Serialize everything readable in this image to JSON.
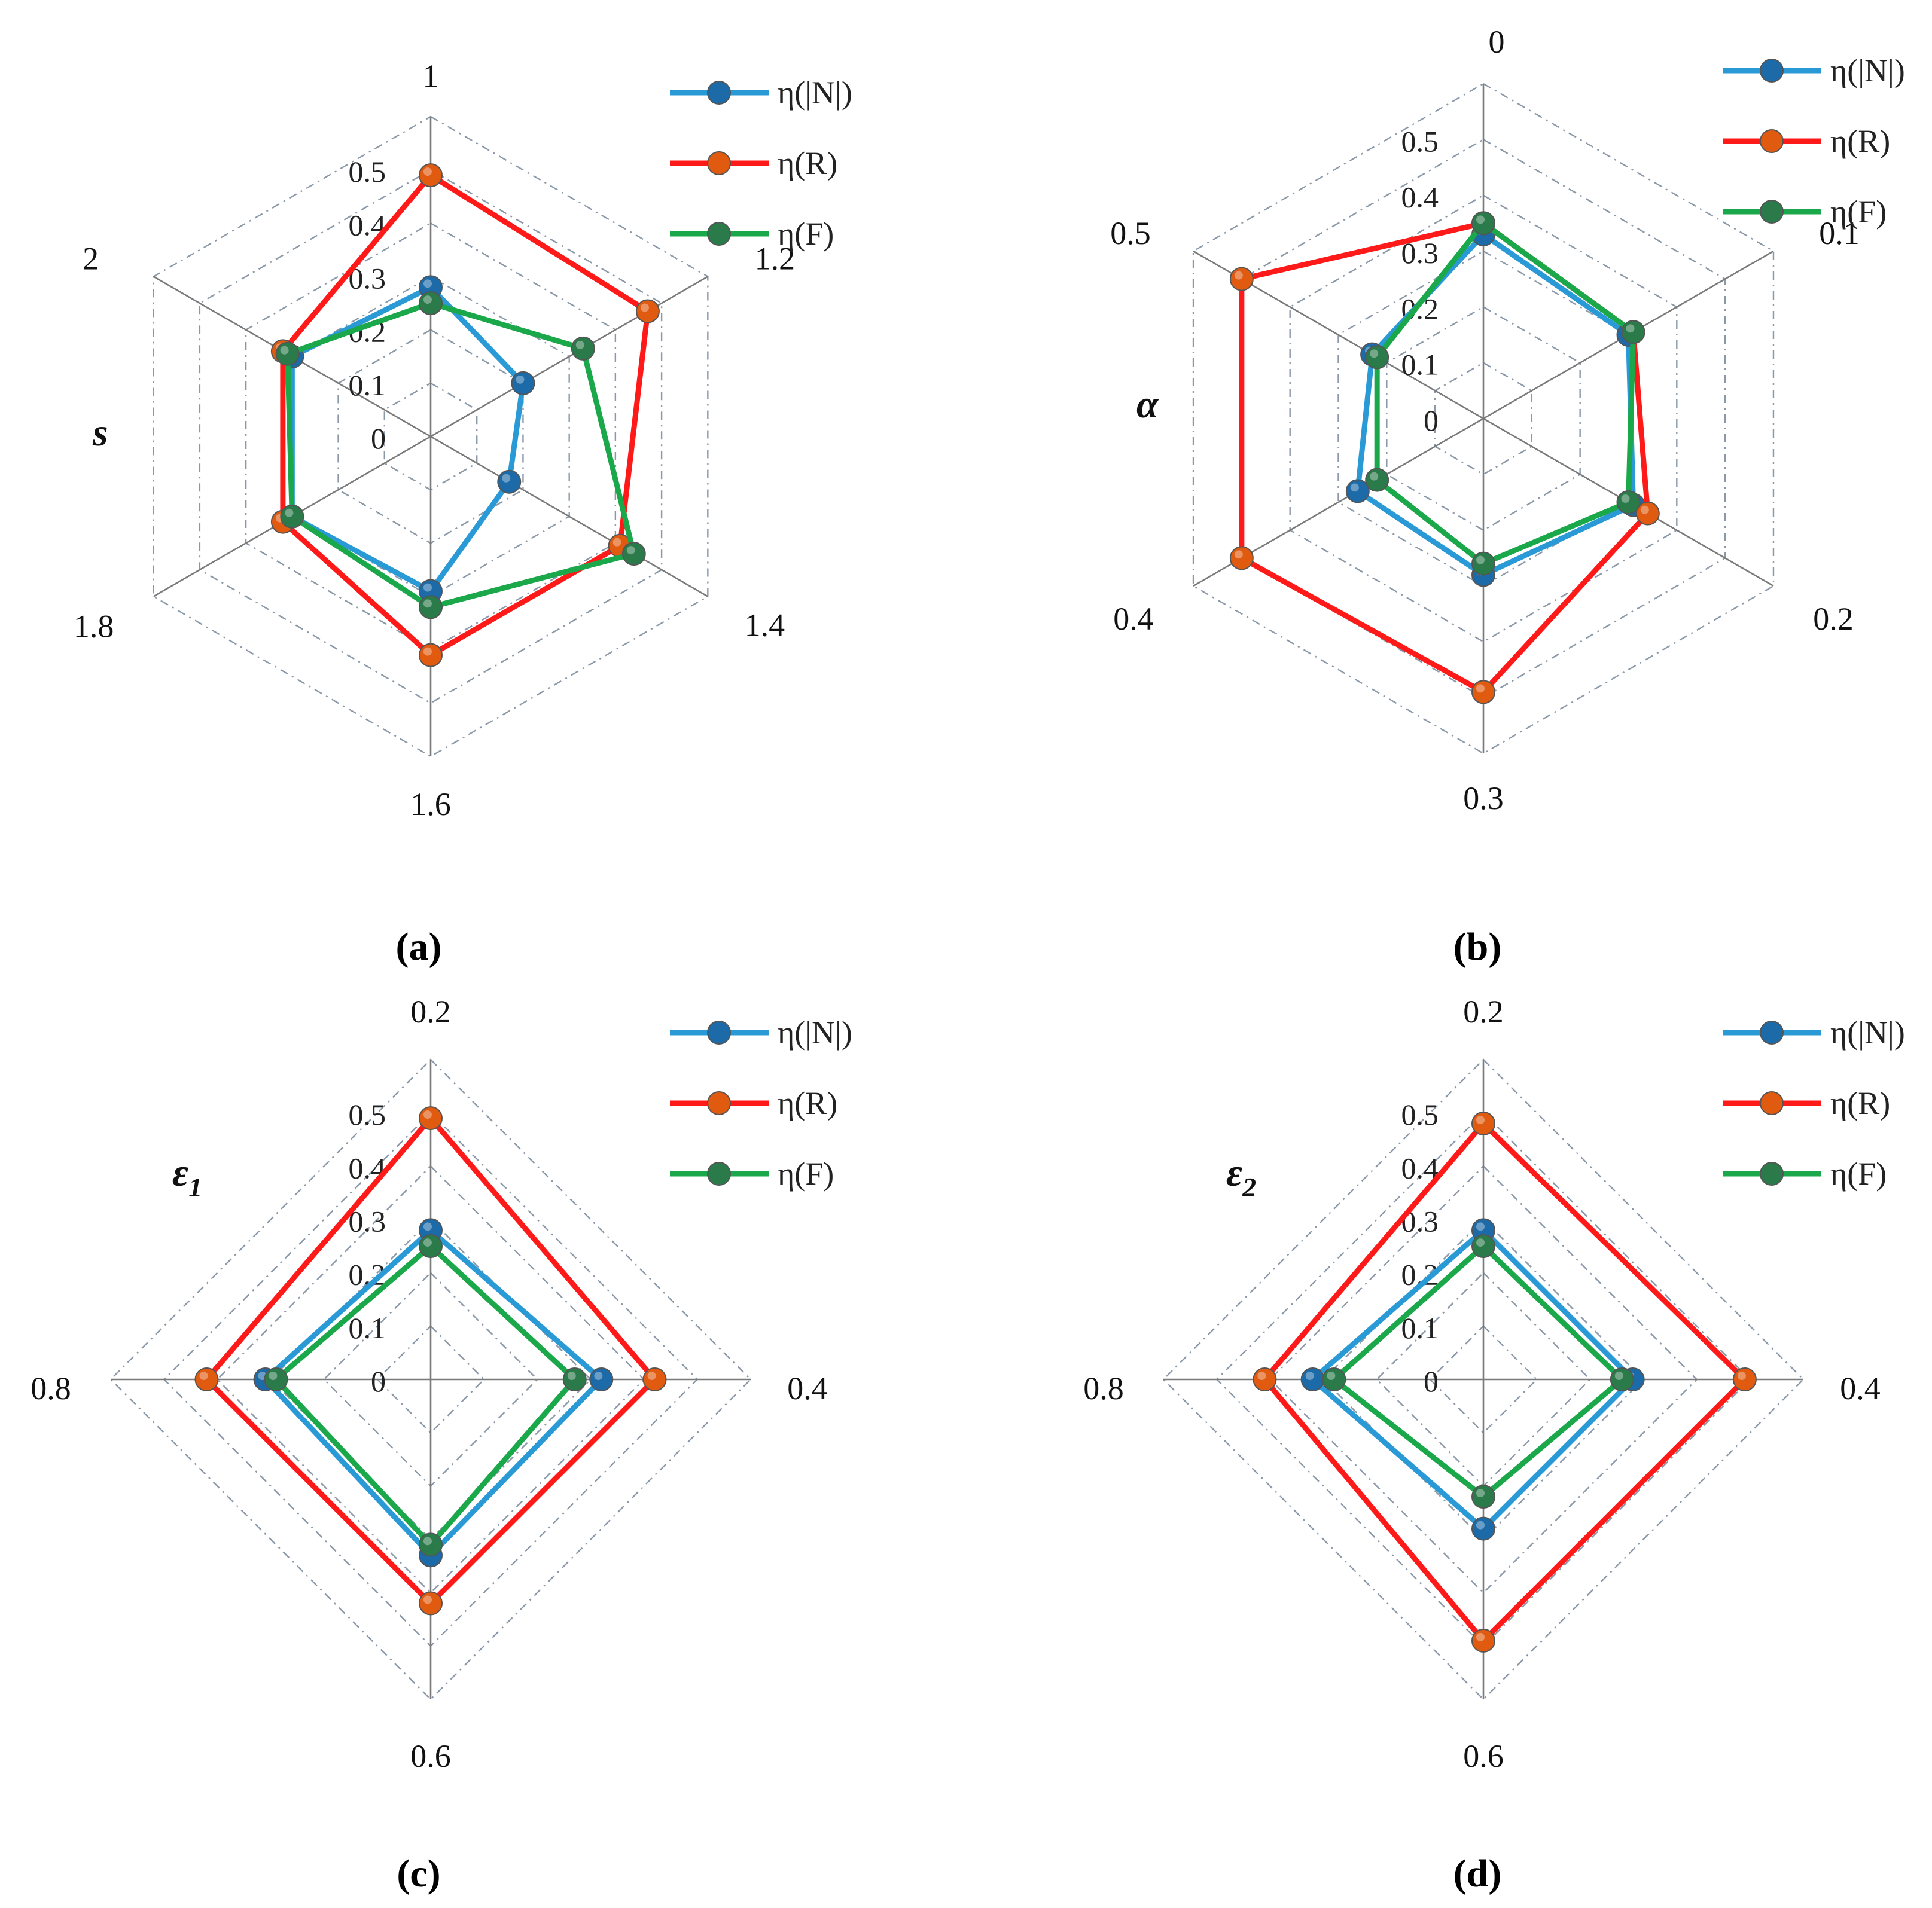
{
  "series_colors": {
    "eta_N": "#2a9ad6",
    "eta_R": "#ff1a1a",
    "eta_F": "#1aa84a"
  },
  "marker_colors": {
    "eta_N": "#1c6aa8",
    "eta_R": "#e05a10",
    "eta_F": "#2a7a4a"
  },
  "grid_color": "#8a98a8",
  "chart_data": [
    {
      "type": "radar",
      "panel_label": "(a)",
      "variable_label": "s",
      "variable_subscript": "",
      "categories": [
        "1",
        "1.2",
        "1.4",
        "1.6",
        "1.8",
        "2"
      ],
      "radial_ticks": [
        "0",
        "0.1",
        "0.2",
        "0.3",
        "0.4",
        "0.5"
      ],
      "rlim": [
        0,
        0.5
      ],
      "grid": true,
      "legend_position": "top-right",
      "series": [
        {
          "name": "η(|N|)",
          "key": "eta_N",
          "values": [
            0.28,
            0.2,
            0.17,
            0.29,
            0.3,
            0.3
          ]
        },
        {
          "name": "η(R)",
          "key": "eta_R",
          "values": [
            0.49,
            0.47,
            0.41,
            0.41,
            0.32,
            0.32
          ]
        },
        {
          "name": "η(F)",
          "key": "eta_F",
          "values": [
            0.25,
            0.33,
            0.44,
            0.32,
            0.3,
            0.31
          ]
        }
      ]
    },
    {
      "type": "radar",
      "panel_label": "(b)",
      "variable_label": "α",
      "variable_subscript": "",
      "categories": [
        "0",
        "0.1",
        "0.2",
        "0.3",
        "0.4",
        "0.5"
      ],
      "radial_ticks": [
        "0",
        "0.1",
        "0.2",
        "0.3",
        "0.4",
        "0.5"
      ],
      "rlim": [
        0,
        0.5
      ],
      "grid": true,
      "legend_position": "top-right",
      "series": [
        {
          "name": "η(|N|)",
          "key": "eta_N",
          "values": [
            0.33,
            0.3,
            0.31,
            0.28,
            0.26,
            0.23
          ]
        },
        {
          "name": "η(R)",
          "key": "eta_R",
          "values": [
            0.35,
            0.31,
            0.34,
            0.49,
            0.5,
            0.5
          ]
        },
        {
          "name": "η(F)",
          "key": "eta_F",
          "values": [
            0.35,
            0.31,
            0.3,
            0.26,
            0.22,
            0.22
          ]
        }
      ]
    },
    {
      "type": "radar",
      "panel_label": "(c)",
      "variable_label": "ε",
      "variable_subscript": "1",
      "categories": [
        "0.2",
        "0.4",
        "0.6",
        "0.8"
      ],
      "radial_ticks": [
        "0",
        "0.1",
        "0.2",
        "0.3",
        "0.4",
        "0.5"
      ],
      "rlim": [
        0,
        0.5
      ],
      "grid": true,
      "legend_position": "top-right",
      "series": [
        {
          "name": "η(|N|)",
          "key": "eta_N",
          "values": [
            0.28,
            0.32,
            0.33,
            0.31
          ]
        },
        {
          "name": "η(R)",
          "key": "eta_R",
          "values": [
            0.49,
            0.42,
            0.42,
            0.42
          ]
        },
        {
          "name": "η(F)",
          "key": "eta_F",
          "values": [
            0.25,
            0.27,
            0.31,
            0.29
          ]
        }
      ]
    },
    {
      "type": "radar",
      "panel_label": "(d)",
      "variable_label": "ε",
      "variable_subscript": "2",
      "categories": [
        "0.2",
        "0.4",
        "0.6",
        "0.8"
      ],
      "radial_ticks": [
        "0",
        "0.1",
        "0.2",
        "0.3",
        "0.4",
        "0.5"
      ],
      "rlim": [
        0,
        0.5
      ],
      "grid": true,
      "legend_position": "top-right",
      "series": [
        {
          "name": "η(|N|)",
          "key": "eta_N",
          "values": [
            0.28,
            0.28,
            0.28,
            0.32
          ]
        },
        {
          "name": "η(R)",
          "key": "eta_R",
          "values": [
            0.48,
            0.49,
            0.49,
            0.41
          ]
        },
        {
          "name": "η(F)",
          "key": "eta_F",
          "values": [
            0.25,
            0.26,
            0.22,
            0.28
          ]
        }
      ]
    }
  ]
}
